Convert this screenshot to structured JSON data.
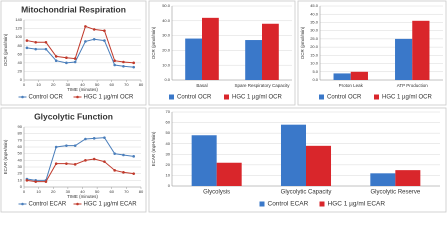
{
  "chart_data": [
    {
      "type": "line",
      "title": "Mitochondrial Respiration",
      "xlabel": "TIME (minutes)",
      "ylabel": "OCR (pmol/min)",
      "x": [
        2,
        8,
        15,
        22,
        29,
        35,
        42,
        48,
        55,
        62,
        68,
        75
      ],
      "series": [
        {
          "name": "Control OCR",
          "color": "#4a7ebb",
          "values": [
            75,
            72,
            72,
            45,
            40,
            42,
            90,
            95,
            92,
            35,
            32,
            30
          ]
        },
        {
          "name": "HGC 1 µg/ml OCR",
          "color": "#c0392b",
          "values": [
            92,
            88,
            88,
            55,
            52,
            50,
            125,
            118,
            115,
            45,
            42,
            40
          ]
        }
      ],
      "xlim": [
        0,
        80
      ],
      "xticks": [
        0,
        10,
        20,
        30,
        40,
        50,
        60,
        70,
        80
      ],
      "ylim": [
        0,
        140
      ],
      "yticks": [
        0,
        20,
        40,
        60,
        80,
        100,
        120,
        140
      ],
      "grid": true
    },
    {
      "type": "bar",
      "ylabel": "OCR (pmol/min)",
      "categories": [
        "Basal",
        "Spare Respiratory Capacity"
      ],
      "series": [
        {
          "name": "Control OCR",
          "color": "#3a78c9",
          "values": [
            28,
            27
          ]
        },
        {
          "name": "HGC 1 µg/ml OCR",
          "color": "#d9262b",
          "values": [
            42,
            38
          ]
        }
      ],
      "ylim": [
        0,
        50
      ],
      "yticks": [
        {
          "value": 0,
          "label": "0.0"
        },
        {
          "value": 10,
          "label": "10.0"
        },
        {
          "value": 20,
          "label": "20.0"
        },
        {
          "value": 30,
          "label": "30.0"
        },
        {
          "value": 40,
          "label": "40.0"
        },
        {
          "value": 50,
          "label": "50.0"
        }
      ],
      "grid": true
    },
    {
      "type": "bar",
      "ylabel": "OCR (pmol/min)",
      "categories": [
        "Proton Leak",
        "ATP Production"
      ],
      "series": [
        {
          "name": "Control OCR",
          "color": "#3a78c9",
          "values": [
            4,
            25
          ]
        },
        {
          "name": "HGC 1 µg/ml OCR",
          "color": "#d9262b",
          "values": [
            5,
            36
          ]
        }
      ],
      "ylim": [
        0,
        45
      ],
      "yticks": [
        {
          "value": 0,
          "label": "0.0"
        },
        {
          "value": 5,
          "label": "5.0"
        },
        {
          "value": 10,
          "label": "10.0"
        },
        {
          "value": 15,
          "label": "15.0"
        },
        {
          "value": 20,
          "label": "20.0"
        },
        {
          "value": 25,
          "label": "25.0"
        },
        {
          "value": 30,
          "label": "30.0"
        },
        {
          "value": 35,
          "label": "35.0"
        },
        {
          "value": 40,
          "label": "40.0"
        },
        {
          "value": 45,
          "label": "45.0"
        }
      ],
      "grid": true
    },
    {
      "type": "line",
      "title": "Glycolytic Function",
      "xlabel": "TIME (minutes)",
      "ylabel": "ECAR (mpH/min)",
      "x": [
        2,
        8,
        15,
        22,
        29,
        35,
        42,
        48,
        55,
        62,
        68,
        75
      ],
      "series": [
        {
          "name": "Control ECAR",
          "color": "#4a7ebb",
          "values": [
            12,
            10,
            10,
            60,
            62,
            62,
            72,
            73,
            74,
            50,
            48,
            46
          ]
        },
        {
          "name": "HGC 1 µg/ml ECAR",
          "color": "#c0392b",
          "values": [
            10,
            8,
            8,
            35,
            35,
            34,
            40,
            42,
            38,
            25,
            22,
            20
          ]
        }
      ],
      "xlim": [
        0,
        80
      ],
      "xticks": [
        0,
        10,
        20,
        30,
        40,
        50,
        60,
        70,
        80
      ],
      "ylim": [
        0,
        90
      ],
      "yticks": [
        0,
        10,
        20,
        30,
        40,
        50,
        60,
        70,
        80,
        90
      ],
      "grid": true
    },
    {
      "type": "bar",
      "ylabel": "ECAR (mpH/min)",
      "categories": [
        "Glycolysis",
        "Glycolytic Capacity",
        "Glycolytic Reserve"
      ],
      "series": [
        {
          "name": "Control ECAR",
          "color": "#3a78c9",
          "values": [
            48,
            58,
            12
          ]
        },
        {
          "name": "HGC 1 µg/ml ECAR",
          "color": "#d9262b",
          "values": [
            22,
            38,
            15
          ]
        }
      ],
      "ylim": [
        0,
        70
      ],
      "yticks": [
        0,
        10,
        20,
        30,
        40,
        50,
        60,
        70
      ],
      "grid": true
    }
  ]
}
